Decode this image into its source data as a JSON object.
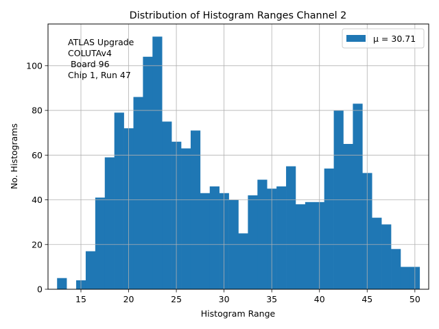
{
  "chart_data": {
    "type": "bar",
    "title": "Distribution of Histogram Ranges Channel 2",
    "xlabel": "Histogram Range",
    "ylabel": "No. Histograms",
    "xlim": [
      11.55,
      51.45
    ],
    "ylim": [
      0,
      118.65
    ],
    "xticks": [
      15,
      20,
      25,
      30,
      35,
      40,
      45,
      50
    ],
    "yticks": [
      0,
      20,
      40,
      60,
      80,
      100
    ],
    "grid": true,
    "bar_color": "#1f77b4",
    "bin_edges": [
      12.5,
      13.5,
      14.5,
      15.5,
      16.5,
      17.5,
      18.5,
      19.5,
      20.5,
      21.5,
      22.5,
      23.5,
      24.5,
      25.5,
      26.5,
      27.5,
      28.5,
      29.5,
      30.5,
      31.5,
      32.5,
      33.5,
      34.5,
      35.5,
      36.5,
      37.5,
      38.5,
      39.5,
      40.5,
      41.5,
      42.5,
      43.5,
      44.5,
      45.5,
      46.5,
      47.5,
      48.5,
      49.5,
      50.5
    ],
    "values": [
      5,
      0,
      4,
      17,
      41,
      59,
      79,
      72,
      86,
      104,
      113,
      75,
      66,
      63,
      71,
      43,
      46,
      43,
      40,
      25,
      42,
      49,
      45,
      46,
      55,
      38,
      39,
      39,
      54,
      80,
      65,
      83,
      52,
      32,
      29,
      18,
      10,
      10
    ],
    "legend": {
      "label": "μ = 30.71",
      "placement": "top-right"
    },
    "annotation": [
      "ATLAS Upgrade",
      "COLUTAv4",
      " Board 96",
      "Chip 1, Run 47"
    ]
  }
}
